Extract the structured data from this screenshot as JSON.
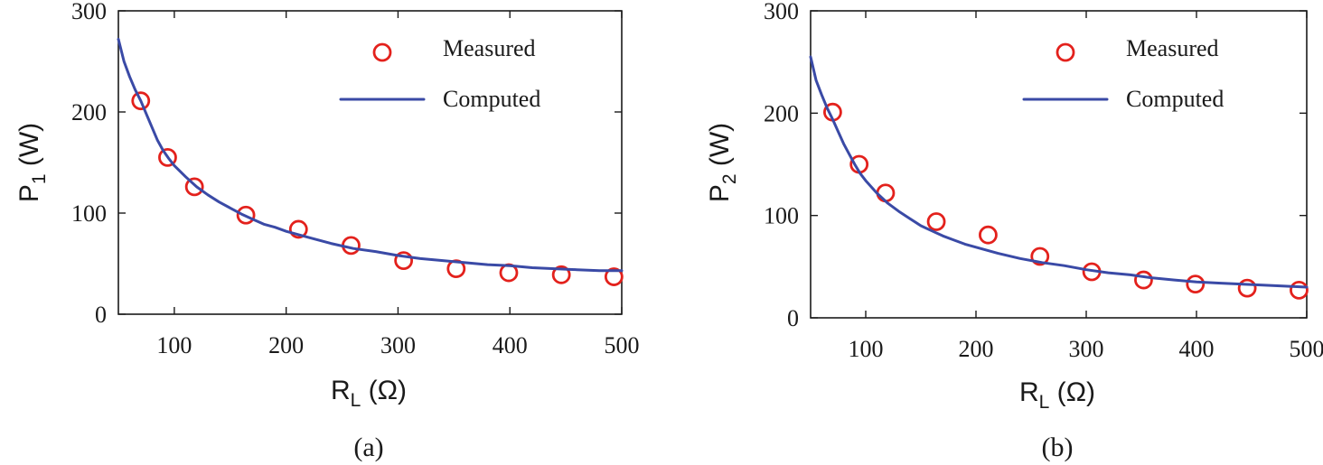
{
  "colors": {
    "measured": "#e3211c",
    "computed": "#3a4aa6"
  },
  "chart_data": [
    {
      "type": "line",
      "panel": "a",
      "caption": "(a)",
      "ylabel_main": "P",
      "ylabel_sub": "1",
      "ylabel_unit": "(W)",
      "xlabel_main": "R",
      "xlabel_sub": "L",
      "xlabel_unit": "(Ω)",
      "xlim": [
        50,
        500
      ],
      "ylim": [
        0,
        300
      ],
      "xticks": [
        100,
        200,
        300,
        400,
        500
      ],
      "yticks": [
        0,
        100,
        200,
        300
      ],
      "legend_position": "top-right",
      "series": [
        {
          "name": "Measured",
          "style": "markers",
          "x": [
            70,
            94,
            118,
            164,
            211,
            258,
            305,
            352,
            399,
            446,
            493
          ],
          "y": [
            211,
            155,
            126,
            98,
            84,
            68,
            53,
            45,
            41,
            39,
            37
          ]
        },
        {
          "name": "Computed",
          "style": "line",
          "x": [
            50,
            55,
            60,
            65,
            70,
            75,
            80,
            85,
            90,
            95,
            100,
            110,
            120,
            130,
            140,
            150,
            160,
            170,
            180,
            190,
            200,
            220,
            240,
            260,
            280,
            300,
            320,
            340,
            360,
            380,
            400,
            420,
            440,
            460,
            480,
            500
          ],
          "y": [
            272,
            250,
            235,
            222,
            211,
            198,
            185,
            172,
            162,
            154,
            147,
            136,
            126,
            118,
            111,
            105,
            99,
            94,
            89,
            86,
            82,
            76,
            70,
            65,
            62,
            58,
            55,
            53,
            51,
            49,
            48,
            46,
            45,
            44,
            43,
            43
          ]
        }
      ]
    },
    {
      "type": "line",
      "panel": "b",
      "caption": "(b)",
      "ylabel_main": "P",
      "ylabel_sub": "2",
      "ylabel_unit": "(W)",
      "xlabel_main": "R",
      "xlabel_sub": "L",
      "xlabel_unit": "(Ω)",
      "xlim": [
        50,
        500
      ],
      "ylim": [
        0,
        300
      ],
      "xticks": [
        100,
        200,
        300,
        400,
        500
      ],
      "yticks": [
        0,
        100,
        200,
        300
      ],
      "legend_position": "top-right",
      "series": [
        {
          "name": "Measured",
          "style": "markers",
          "x": [
            70,
            94,
            118,
            164,
            211,
            258,
            305,
            352,
            399,
            446,
            493
          ],
          "y": [
            201,
            150,
            122,
            94,
            81,
            60,
            45,
            37,
            33,
            29,
            27
          ]
        },
        {
          "name": "Computed",
          "style": "line",
          "x": [
            50,
            55,
            60,
            65,
            70,
            75,
            80,
            85,
            90,
            95,
            100,
            110,
            120,
            130,
            140,
            150,
            160,
            170,
            180,
            190,
            200,
            220,
            240,
            260,
            280,
            300,
            320,
            340,
            360,
            380,
            400,
            420,
            440,
            460,
            480,
            500
          ],
          "y": [
            255,
            232,
            218,
            205,
            194,
            182,
            170,
            160,
            150,
            141,
            134,
            122,
            112,
            104,
            97,
            90,
            85,
            80,
            76,
            72,
            69,
            63,
            58,
            54,
            51,
            47,
            44,
            42,
            39,
            37,
            35,
            34,
            33,
            32,
            31,
            30
          ]
        }
      ]
    }
  ]
}
